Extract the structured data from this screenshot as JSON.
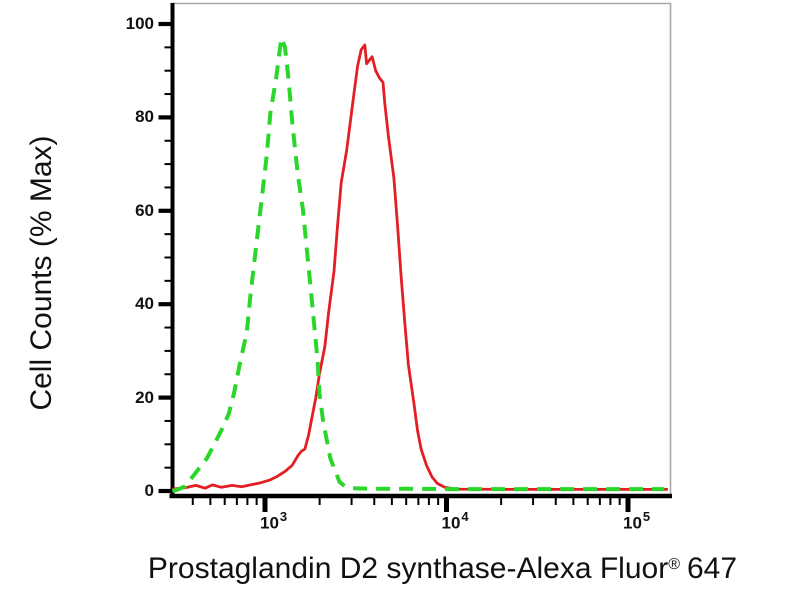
{
  "x_title": {
    "main": "Prostaglandin D2 synthase-Alexa Fluor",
    "registered": "®",
    "suffix": "647"
  },
  "colors": {
    "background": "#ffffff",
    "axis_black": "#000000",
    "frame_gray": "#a8a8a8",
    "green_series": "#2bd62b",
    "red_series": "#e31e24",
    "text": "#111111"
  },
  "chart_data": {
    "type": "line",
    "subtype": "flow-cytometry-histogram-overlay",
    "title": "",
    "grid": "off",
    "legend": "none",
    "x_axis": {
      "label": "Prostaglandin D2 synthase-Alexa Fluor® 647",
      "scale": "log10",
      "range_log10": [
        2.488,
        5.232
      ],
      "major_ticks": [
        {
          "log10": 3,
          "base": "10",
          "exp": "3"
        },
        {
          "log10": 4,
          "base": "10",
          "exp": "4"
        },
        {
          "log10": 5,
          "base": "10",
          "exp": "5"
        }
      ],
      "minor_ticks_log10": [
        2.602,
        2.699,
        2.778,
        2.845,
        2.903,
        2.954,
        3.301,
        3.477,
        3.602,
        3.699,
        3.778,
        3.845,
        3.903,
        3.954,
        4.301,
        4.477,
        4.602,
        4.699,
        4.778,
        4.845,
        4.903,
        4.954
      ]
    },
    "y_axis": {
      "label": "Cell Counts (% Max)",
      "range": [
        0,
        104
      ],
      "major_ticks": [
        {
          "value": 0,
          "label": "0"
        },
        {
          "value": 20,
          "label": "20"
        },
        {
          "value": 40,
          "label": "40"
        },
        {
          "value": 60,
          "label": "60"
        },
        {
          "value": 80,
          "label": "80"
        },
        {
          "value": 100,
          "label": "100"
        }
      ],
      "minor_ticks": [
        5,
        10,
        15,
        25,
        30,
        35,
        45,
        50,
        55,
        65,
        70,
        75,
        85,
        90,
        95
      ]
    },
    "series": [
      {
        "name": "red-solid-stained",
        "color": "#e31e24",
        "line_style": "solid",
        "line_width": 2.8,
        "peak": {
          "x_value": 3500,
          "pct": 95.5
        },
        "points_log10x_pct": [
          [
            2.49,
            0.4
          ],
          [
            2.56,
            0.7
          ],
          [
            2.62,
            1.2
          ],
          [
            2.67,
            0.6
          ],
          [
            2.71,
            1.3
          ],
          [
            2.76,
            0.8
          ],
          [
            2.82,
            1.2
          ],
          [
            2.87,
            0.9
          ],
          [
            2.93,
            1.4
          ],
          [
            2.98,
            1.8
          ],
          [
            3.03,
            2.4
          ],
          [
            3.07,
            3.2
          ],
          [
            3.11,
            4.2
          ],
          [
            3.15,
            5.5
          ],
          [
            3.18,
            7.5
          ],
          [
            3.2,
            8.5
          ],
          [
            3.22,
            9.0
          ],
          [
            3.24,
            12
          ],
          [
            3.26,
            16
          ],
          [
            3.28,
            20
          ],
          [
            3.3,
            25
          ],
          [
            3.33,
            31
          ],
          [
            3.35,
            38
          ],
          [
            3.36,
            41
          ],
          [
            3.38,
            47
          ],
          [
            3.4,
            57
          ],
          [
            3.42,
            66
          ],
          [
            3.45,
            73
          ],
          [
            3.47,
            79
          ],
          [
            3.49,
            85
          ],
          [
            3.51,
            91
          ],
          [
            3.53,
            94.5
          ],
          [
            3.55,
            95.5
          ],
          [
            3.56,
            91.5
          ],
          [
            3.59,
            93
          ],
          [
            3.61,
            90
          ],
          [
            3.63,
            88.5
          ],
          [
            3.65,
            87.5
          ],
          [
            3.66,
            83
          ],
          [
            3.68,
            76
          ],
          [
            3.71,
            67
          ],
          [
            3.73,
            57
          ],
          [
            3.75,
            46
          ],
          [
            3.77,
            36
          ],
          [
            3.79,
            27
          ],
          [
            3.82,
            19
          ],
          [
            3.84,
            13
          ],
          [
            3.86,
            9
          ],
          [
            3.89,
            5.5
          ],
          [
            3.92,
            3
          ],
          [
            3.95,
            1.6
          ],
          [
            3.99,
            0.8
          ],
          [
            4.05,
            0.4
          ],
          [
            4.4,
            0.35
          ],
          [
            4.85,
            0.35
          ],
          [
            5.22,
            0.35
          ]
        ]
      },
      {
        "name": "green-dashed-control",
        "color": "#2bd62b",
        "line_style": "dashed",
        "line_width": 4,
        "peak": {
          "x_value": 1230,
          "pct": 97
        },
        "points_log10x_pct": [
          [
            2.49,
            0
          ],
          [
            2.52,
            0.3
          ],
          [
            2.56,
            1
          ],
          [
            2.6,
            3
          ],
          [
            2.64,
            5
          ],
          [
            2.68,
            7
          ],
          [
            2.72,
            10
          ],
          [
            2.76,
            13
          ],
          [
            2.8,
            16.5
          ],
          [
            2.83,
            21
          ],
          [
            2.86,
            27
          ],
          [
            2.9,
            34
          ],
          [
            2.92,
            42
          ],
          [
            2.95,
            52
          ],
          [
            2.98,
            62
          ],
          [
            3.01,
            72
          ],
          [
            3.03,
            81
          ],
          [
            3.06,
            88
          ],
          [
            3.08,
            94
          ],
          [
            3.09,
            97
          ],
          [
            3.11,
            95
          ],
          [
            3.13,
            88
          ],
          [
            3.15,
            79
          ],
          [
            3.18,
            68
          ],
          [
            3.21,
            60
          ],
          [
            3.23,
            52
          ],
          [
            3.25,
            44
          ],
          [
            3.27,
            36
          ],
          [
            3.29,
            28
          ],
          [
            3.3,
            21
          ],
          [
            3.32,
            15
          ],
          [
            3.34,
            11
          ],
          [
            3.36,
            7
          ],
          [
            3.39,
            4
          ],
          [
            3.41,
            2
          ],
          [
            3.44,
            1
          ],
          [
            3.48,
            0.6
          ],
          [
            3.58,
            0.5
          ],
          [
            3.74,
            0.5
          ],
          [
            4.02,
            0.4
          ],
          [
            4.4,
            0.4
          ],
          [
            4.85,
            0.4
          ],
          [
            5.2,
            0.4
          ]
        ]
      }
    ]
  }
}
